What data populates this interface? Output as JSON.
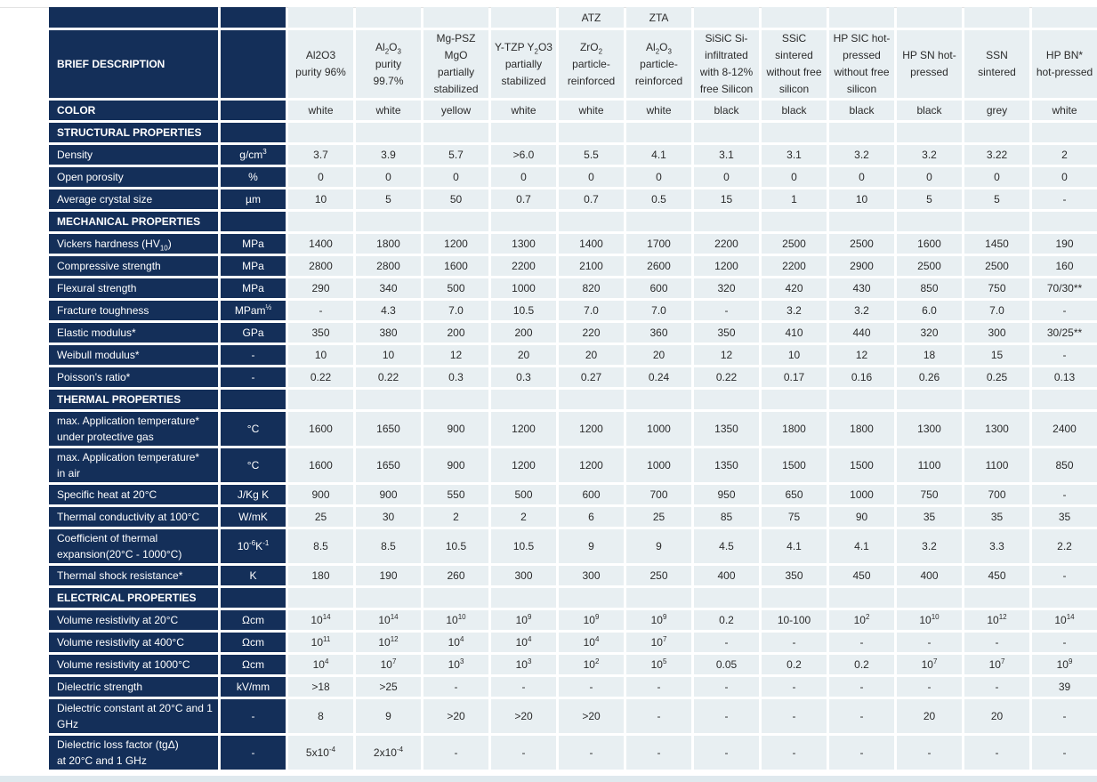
{
  "table": {
    "header_label": "BRIEF DESCRIPTION",
    "group_row": [
      "",
      "",
      "",
      "",
      "ATZ",
      "ZTA",
      "",
      "",
      "",
      "",
      "",
      ""
    ],
    "materials": [
      "Al2O3<br>purity 96%",
      "Al<sub>2</sub>O<sub>3</sub><br>purity<br>99.7%",
      "Mg-PSZ<br>MgO<br>partially<br>stabilized",
      "Y-TZP Y<sub>2</sub>O3<br>partially<br>stabilized",
      "ZrO<sub>2</sub><br>particle-<br>reinforced",
      "Al<sub>2</sub>O<sub>3</sub><br>particle-<br>reinforced",
      "SiSiC Si-<br>infiltrated<br>with 8-12%<br>free Silicon",
      "SSiC<br>sintered<br>without free<br>silicon",
      "HP SIC hot-<br>pressed<br>without free<br>silicon",
      "HP SN hot-<br>pressed",
      "SSN<br>sintered",
      "HP BN*<br>hot-pressed"
    ],
    "rows": [
      {
        "type": "row",
        "label": "COLOR",
        "bold": true,
        "unit": "",
        "values": [
          "white",
          "white",
          "yellow",
          "white",
          "white",
          "white",
          "black",
          "black",
          "black",
          "black",
          "grey",
          "white"
        ]
      },
      {
        "type": "section",
        "label": "STRUCTURAL PROPERTIES"
      },
      {
        "type": "row",
        "label": "Density",
        "unit": "g/cm<sup>3</sup>",
        "values": [
          "3.7",
          "3.9",
          "5.7",
          ">6.0",
          "5.5",
          "4.1",
          "3.1",
          "3.1",
          "3.2",
          "3.2",
          "3.22",
          "2"
        ]
      },
      {
        "type": "row",
        "label": "Open porosity",
        "unit": "%",
        "values": [
          "0",
          "0",
          "0",
          "0",
          "0",
          "0",
          "0",
          "0",
          "0",
          "0",
          "0",
          "0"
        ]
      },
      {
        "type": "row",
        "label": "Average crystal size",
        "unit": "µm",
        "values": [
          "10",
          "5",
          "50",
          "0.7",
          "0.7",
          "0.5",
          "15",
          "1",
          "10",
          "5",
          "5",
          "-"
        ]
      },
      {
        "type": "section",
        "label": "MECHANICAL PROPERTIES"
      },
      {
        "type": "row",
        "label": "Vickers hardness (HV<sub>10</sub>)",
        "unit": "MPa",
        "values": [
          "1400",
          "1800",
          "1200",
          "1300",
          "1400",
          "1700",
          "2200",
          "2500",
          "2500",
          "1600",
          "1450",
          "190"
        ]
      },
      {
        "type": "row",
        "label": "Compressive strength",
        "unit": "MPa",
        "values": [
          "2800",
          "2800",
          "1600",
          "2200",
          "2100",
          "2600",
          "1200",
          "2200",
          "2900",
          "2500",
          "2500",
          "160"
        ]
      },
      {
        "type": "row",
        "label": "Flexural strength",
        "unit": "MPa",
        "values": [
          "290",
          "340",
          "500",
          "1000",
          "820",
          "600",
          "320",
          "420",
          "430",
          "850",
          "750",
          "70/30**"
        ]
      },
      {
        "type": "row",
        "label": "Fracture toughness",
        "unit": "MPam<sup>½</sup>",
        "values": [
          "-",
          "4.3",
          "7.0",
          "10.5",
          "7.0",
          "7.0",
          "-",
          "3.2",
          "3.2",
          "6.0",
          "7.0",
          "-"
        ]
      },
      {
        "type": "row",
        "label": "Elastic modulus*",
        "unit": "GPa",
        "values": [
          "350",
          "380",
          "200",
          "200",
          "220",
          "360",
          "350",
          "410",
          "440",
          "320",
          "300",
          "30/25**"
        ]
      },
      {
        "type": "row",
        "label": "Weibull modulus*",
        "unit": "-",
        "values": [
          "10",
          "10",
          "12",
          "20",
          "20",
          "20",
          "12",
          "10",
          "12",
          "18",
          "15",
          "-"
        ]
      },
      {
        "type": "row",
        "label": "Poisson's ratio*",
        "unit": "-",
        "values": [
          "0.22",
          "0.22",
          "0.3",
          "0.3",
          "0.27",
          "0.24",
          "0.22",
          "0.17",
          "0.16",
          "0.26",
          "0.25",
          "0.13"
        ]
      },
      {
        "type": "section",
        "label": "THERMAL PROPERTIES"
      },
      {
        "type": "row",
        "label": "max. Application temperature*<br>under protective gas",
        "unit": "°C",
        "values": [
          "1600",
          "1650",
          "900",
          "1200",
          "1200",
          "1000",
          "1350",
          "1800",
          "1800",
          "1300",
          "1300",
          "2400"
        ]
      },
      {
        "type": "row",
        "label": "max. Application temperature*<br>in air",
        "unit": "°C",
        "values": [
          "1600",
          "1650",
          "900",
          "1200",
          "1200",
          "1000",
          "1350",
          "1500",
          "1500",
          "1100",
          "1100",
          "850"
        ]
      },
      {
        "type": "row",
        "label": "Specific heat at 20°C",
        "unit": "J/Kg K",
        "values": [
          "900",
          "900",
          "550",
          "500",
          "600",
          "700",
          "950",
          "650",
          "1000",
          "750",
          "700",
          "-"
        ]
      },
      {
        "type": "row",
        "label": "Thermal conductivity at 100°C",
        "unit": "W/mK",
        "values": [
          "25",
          "30",
          "2",
          "2",
          "6",
          "25",
          "85",
          "75",
          "90",
          "35",
          "35",
          "35"
        ]
      },
      {
        "type": "row",
        "label": "Coefficient of thermal<br>expansion(20°C - 1000°C)",
        "unit": "10<sup>-6</sup>K<sup>-1</sup>",
        "values": [
          "8.5",
          "8.5",
          "10.5",
          "10.5",
          "9",
          "9",
          "4.5",
          "4.1",
          "4.1",
          "3.2",
          "3.3",
          "2.2"
        ]
      },
      {
        "type": "row",
        "label": "Thermal shock resistance*",
        "unit": "K",
        "values": [
          "180",
          "190",
          "260",
          "300",
          "300",
          "250",
          "400",
          "350",
          "450",
          "400",
          "450",
          "-"
        ]
      },
      {
        "type": "section",
        "label": "ELECTRICAL PROPERTIES"
      },
      {
        "type": "row",
        "label": "Volume resistivity at 20°C",
        "unit": "Ωcm",
        "values": [
          "10<sup>14</sup>",
          "10<sup>14</sup>",
          "10<sup>10</sup>",
          "10<sup>9</sup>",
          "10<sup>9</sup>",
          "10<sup>9</sup>",
          "0.2",
          "10-100",
          "10<sup>2</sup>",
          "10<sup>10</sup>",
          "10<sup>12</sup>",
          "10<sup>14</sup>"
        ]
      },
      {
        "type": "row",
        "label": "Volume resistivity at 400°C",
        "unit": "Ωcm",
        "values": [
          "10<sup>11</sup>",
          "10<sup>12</sup>",
          "10<sup>4</sup>",
          "10<sup>4</sup>",
          "10<sup>4</sup>",
          "10<sup>7</sup>",
          "-",
          "-",
          "-",
          "-",
          "-",
          "-"
        ]
      },
      {
        "type": "row",
        "label": "Volume resistivity at 1000°C",
        "unit": "Ωcm",
        "values": [
          "10<sup>4</sup>",
          "10<sup>7</sup>",
          "10<sup>3</sup>",
          "10<sup>3</sup>",
          "10<sup>2</sup>",
          "10<sup>5</sup>",
          "0.05",
          "0.2",
          "0.2",
          "10<sup>7</sup>",
          "10<sup>7</sup>",
          "10<sup>9</sup>"
        ]
      },
      {
        "type": "row",
        "label": "Dielectric strength",
        "unit": "kV/mm",
        "values": [
          ">18",
          ">25",
          "-",
          "-",
          "-",
          "-",
          "-",
          "-",
          "-",
          "-",
          "-",
          "39"
        ]
      },
      {
        "type": "row",
        "label": "Dielectric constant at 20°C and 1<br>GHz",
        "unit": "-",
        "values": [
          "8",
          "9",
          ">20",
          ">20",
          ">20",
          "-",
          "-",
          "-",
          "-",
          "20",
          "20",
          "-"
        ]
      },
      {
        "type": "row",
        "label": "Dielectric loss factor (tgΔ)<br>at 20°C and 1 GHz",
        "unit": "-",
        "values": [
          "5x10<sup>-4</sup>",
          "2x10<sup>-4</sup>",
          "-",
          "-",
          "-",
          "-",
          "-",
          "-",
          "-",
          "-",
          "-",
          "-"
        ]
      }
    ]
  }
}
